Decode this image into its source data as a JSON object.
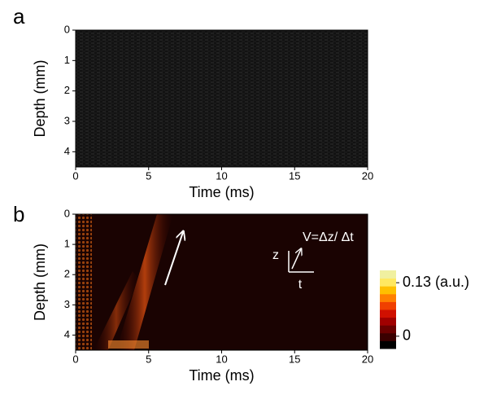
{
  "chart_data": [
    {
      "type": "heatmap",
      "panel": "a",
      "xlabel": "Time (ms)",
      "ylabel": "Depth (mm)",
      "xlim": [
        0,
        20
      ],
      "ylim": [
        4.5,
        0
      ],
      "xticks": [
        0,
        5,
        10,
        15,
        20
      ],
      "yticks": [
        0,
        1,
        2,
        3,
        4
      ],
      "background": "#121212"
    },
    {
      "type": "heatmap",
      "panel": "b",
      "xlabel": "Time (ms)",
      "ylabel": "Depth (mm)",
      "xlim": [
        0,
        20
      ],
      "ylim": [
        4.5,
        0
      ],
      "xticks": [
        0,
        5,
        10,
        15,
        20
      ],
      "yticks": [
        0,
        1,
        2,
        3,
        4
      ],
      "background": "#1a0302",
      "annotations": [
        "V=Δz/ Δt",
        "z",
        "t"
      ],
      "colorbar": {
        "clim": [
          -0.03,
          0.16
        ],
        "ticks": [
          {
            "value": 0.13,
            "label": "0.13 (a.u.)"
          },
          0
        ],
        "colors": [
          "#000000",
          "#3a0000",
          "#6a0000",
          "#a00000",
          "#d01000",
          "#f04000",
          "#ff8000",
          "#ffc000",
          "#ffe860",
          "#f0f0a0"
        ]
      }
    }
  ]
}
